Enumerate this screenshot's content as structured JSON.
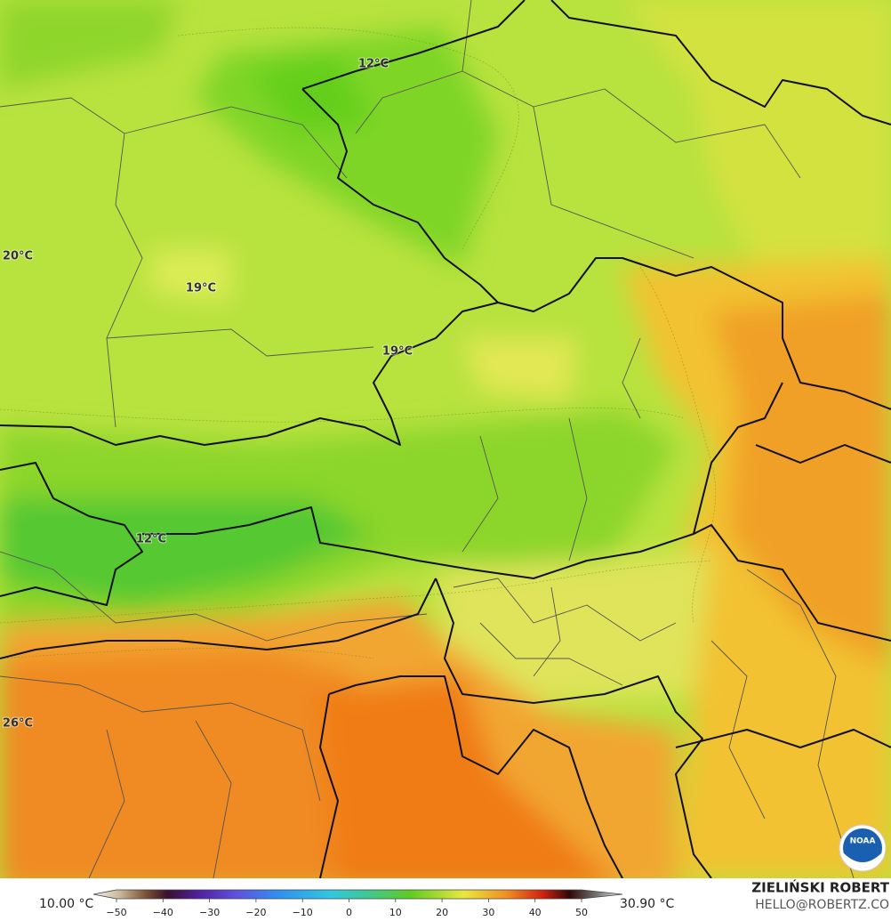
{
  "map": {
    "labels": [
      "12°C",
      "20°C",
      "19°C",
      "19°C",
      "12°C",
      "26°C"
    ]
  },
  "colorbar": {
    "min_label": "10.00 °C",
    "max_label": "30.90 °C",
    "ticks": [
      {
        "value": -50,
        "label": "−50"
      },
      {
        "value": -40,
        "label": "−40"
      },
      {
        "value": -30,
        "label": "−30"
      },
      {
        "value": -20,
        "label": "−20"
      },
      {
        "value": -10,
        "label": "−10"
      },
      0,
      10,
      20,
      30,
      40,
      50
    ]
  },
  "credit": {
    "name": "ZIELIŃSKI ROBERT",
    "email": "HELLO@ROBERTZ.CO"
  },
  "logo": "NOAA"
}
